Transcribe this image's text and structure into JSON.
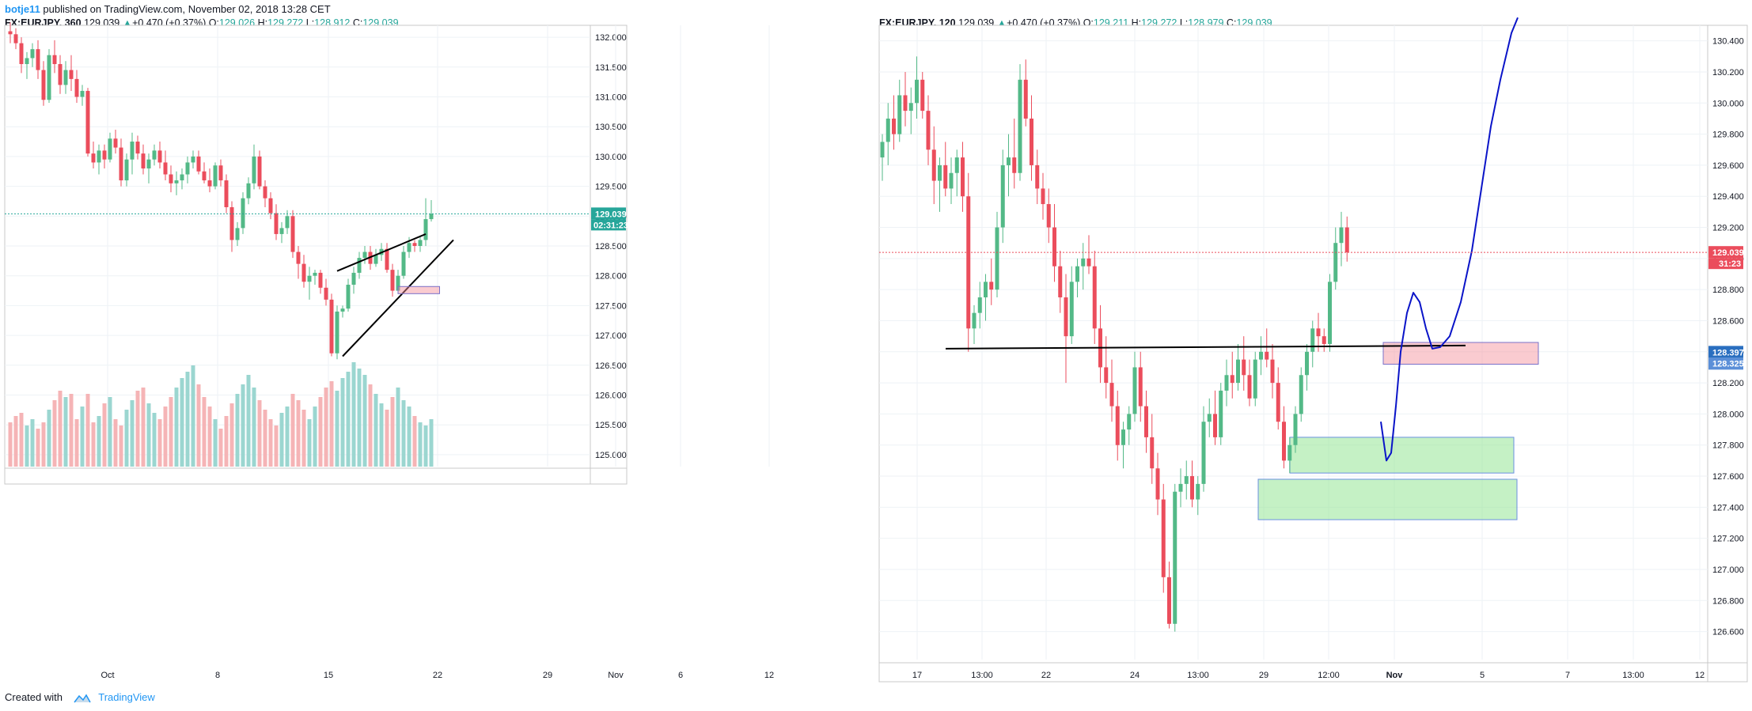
{
  "header": {
    "author": "botje11",
    "text": " published on TradingView.com, November 02, 2018 13:28 CET"
  },
  "footer": {
    "created_with": "Created with",
    "brand": "TradingView"
  },
  "chart_data": [
    {
      "type": "candlestick",
      "symbol": "FX:EURJPY, 360",
      "legend": {
        "price": "129.039",
        "change": "+0.470 (+0.37%)",
        "O": "129.026",
        "H": "129.272",
        "L": "128.912",
        "C": "129.039"
      },
      "y_ticks": [
        "132.000",
        "131.500",
        "131.000",
        "130.500",
        "130.000",
        "129.500",
        "129.000",
        "128.500",
        "128.000",
        "127.500",
        "127.000",
        "126.500",
        "126.000",
        "125.500",
        "125.000"
      ],
      "ylim": [
        124.8,
        132.2
      ],
      "x_ticks": [
        "Oct",
        "8",
        "15",
        "22",
        "29",
        "Nov",
        "6",
        "12"
      ],
      "last_price": "129.039",
      "countdown": "02:31:23",
      "ohlc": [
        [
          132.1,
          132.25,
          131.9,
          132.05
        ],
        [
          132.05,
          132.15,
          131.8,
          131.9
        ],
        [
          131.9,
          132.0,
          131.4,
          131.55
        ],
        [
          131.55,
          131.75,
          131.3,
          131.65
        ],
        [
          131.65,
          131.9,
          131.5,
          131.8
        ],
        [
          131.8,
          131.95,
          131.3,
          131.45
        ],
        [
          131.45,
          131.6,
          130.85,
          130.95
        ],
        [
          130.95,
          131.8,
          130.9,
          131.7
        ],
        [
          131.7,
          131.95,
          131.4,
          131.55
        ],
        [
          131.55,
          131.7,
          131.05,
          131.2
        ],
        [
          131.2,
          131.6,
          131.05,
          131.45
        ],
        [
          131.45,
          131.7,
          131.1,
          131.3
        ],
        [
          131.3,
          131.45,
          130.9,
          131.0
        ],
        [
          131.0,
          131.2,
          130.85,
          131.1
        ],
        [
          131.1,
          131.15,
          130.0,
          130.05
        ],
        [
          130.05,
          130.25,
          129.8,
          129.9
        ],
        [
          129.9,
          130.2,
          129.7,
          130.1
        ],
        [
          130.1,
          130.2,
          129.8,
          129.95
        ],
        [
          129.95,
          130.4,
          129.9,
          130.3
        ],
        [
          130.3,
          130.45,
          130.05,
          130.15
        ],
        [
          130.15,
          130.3,
          129.5,
          129.6
        ],
        [
          129.6,
          130.05,
          129.5,
          129.95
        ],
        [
          129.95,
          130.4,
          129.7,
          130.25
        ],
        [
          130.25,
          130.35,
          129.95,
          130.05
        ],
        [
          130.05,
          130.2,
          129.7,
          129.8
        ],
        [
          129.8,
          130.05,
          129.55,
          129.95
        ],
        [
          129.95,
          130.2,
          129.85,
          130.1
        ],
        [
          130.1,
          130.25,
          129.8,
          129.9
        ],
        [
          129.9,
          130.1,
          129.6,
          129.7
        ],
        [
          129.7,
          129.85,
          129.4,
          129.55
        ],
        [
          129.55,
          129.75,
          129.35,
          129.6
        ],
        [
          129.6,
          129.8,
          129.45,
          129.7
        ],
        [
          129.7,
          130.0,
          129.55,
          129.9
        ],
        [
          129.9,
          130.1,
          129.8,
          130.0
        ],
        [
          130.0,
          130.1,
          129.7,
          129.75
        ],
        [
          129.75,
          129.9,
          129.55,
          129.6
        ],
        [
          129.6,
          129.8,
          129.4,
          129.5
        ],
        [
          129.5,
          129.9,
          129.45,
          129.85
        ],
        [
          129.85,
          129.95,
          129.5,
          129.6
        ],
        [
          129.6,
          129.7,
          129.05,
          129.15
        ],
        [
          129.15,
          129.25,
          128.4,
          128.6
        ],
        [
          128.6,
          128.9,
          128.5,
          128.8
        ],
        [
          128.8,
          129.4,
          128.7,
          129.3
        ],
        [
          129.3,
          129.65,
          129.2,
          129.55
        ],
        [
          129.55,
          130.2,
          129.45,
          130.0
        ],
        [
          130.0,
          130.1,
          129.45,
          129.5
        ],
        [
          129.5,
          129.6,
          129.15,
          129.3
        ],
        [
          129.3,
          129.4,
          128.95,
          129.05
        ],
        [
          129.05,
          129.2,
          128.6,
          128.7
        ],
        [
          128.7,
          128.9,
          128.55,
          128.8
        ],
        [
          128.8,
          129.1,
          128.7,
          129.0
        ],
        [
          129.0,
          129.1,
          128.3,
          128.4
        ],
        [
          128.4,
          128.5,
          127.95,
          128.2
        ],
        [
          128.2,
          128.35,
          127.8,
          127.9
        ],
        [
          127.9,
          128.15,
          127.6,
          128.0
        ],
        [
          128.0,
          128.1,
          127.85,
          128.05
        ],
        [
          128.05,
          128.1,
          127.7,
          127.8
        ],
        [
          127.8,
          127.95,
          127.5,
          127.6
        ],
        [
          127.6,
          127.7,
          126.65,
          126.7
        ],
        [
          126.7,
          127.5,
          126.6,
          127.4
        ],
        [
          127.4,
          127.5,
          127.3,
          127.45
        ],
        [
          127.45,
          127.95,
          127.4,
          127.85
        ],
        [
          127.85,
          128.15,
          127.7,
          128.05
        ],
        [
          128.05,
          128.4,
          127.95,
          128.3
        ],
        [
          128.3,
          128.5,
          128.2,
          128.4
        ],
        [
          128.4,
          128.5,
          128.1,
          128.2
        ],
        [
          128.2,
          128.45,
          128.15,
          128.35
        ],
        [
          128.35,
          128.55,
          128.25,
          128.45
        ],
        [
          128.45,
          128.55,
          128.05,
          128.1
        ],
        [
          128.1,
          128.2,
          127.65,
          127.75
        ],
        [
          127.75,
          128.1,
          127.7,
          128.0
        ],
        [
          128.0,
          128.5,
          127.95,
          128.4
        ],
        [
          128.4,
          128.65,
          128.3,
          128.55
        ],
        [
          128.55,
          128.6,
          128.4,
          128.5
        ],
        [
          128.5,
          128.65,
          128.4,
          128.6
        ],
        [
          128.6,
          129.3,
          128.5,
          128.95
        ],
        [
          128.95,
          129.27,
          128.91,
          129.04
        ]
      ],
      "volume": [
        0.28,
        0.32,
        0.34,
        0.26,
        0.3,
        0.24,
        0.28,
        0.36,
        0.42,
        0.48,
        0.44,
        0.46,
        0.3,
        0.38,
        0.46,
        0.28,
        0.32,
        0.4,
        0.44,
        0.3,
        0.26,
        0.36,
        0.42,
        0.48,
        0.5,
        0.4,
        0.34,
        0.3,
        0.38,
        0.44,
        0.5,
        0.56,
        0.6,
        0.64,
        0.52,
        0.44,
        0.38,
        0.3,
        0.24,
        0.32,
        0.4,
        0.46,
        0.52,
        0.58,
        0.5,
        0.42,
        0.36,
        0.3,
        0.26,
        0.34,
        0.38,
        0.46,
        0.42,
        0.36,
        0.3,
        0.38,
        0.44,
        0.5,
        0.54,
        0.48,
        0.56,
        0.6,
        0.66,
        0.62,
        0.58,
        0.52,
        0.46,
        0.4,
        0.36,
        0.44,
        0.5,
        0.42,
        0.38,
        0.32,
        0.28,
        0.26,
        0.3
      ],
      "annotations": {
        "wedge_top": [
          [
            59,
            128.08
          ],
          [
            75,
            128.7
          ]
        ],
        "wedge_bottom": [
          [
            60,
            126.65
          ],
          [
            80,
            128.6
          ]
        ],
        "supply_zone": [
          70,
          127.7,
          77.5,
          127.82
        ]
      }
    },
    {
      "type": "candlestick",
      "symbol": "FX:EURJPY, 120",
      "legend": {
        "price": "129.039",
        "change": "+0.470 (+0.37%)",
        "O": "129.211",
        "H": "129.272",
        "L": "128.979",
        "C": "129.039"
      },
      "y_ticks": [
        "130.400",
        "130.200",
        "130.000",
        "129.800",
        "129.600",
        "129.400",
        "129.200",
        "129.000",
        "128.800",
        "128.600",
        "128.400",
        "128.200",
        "128.000",
        "127.800",
        "127.600",
        "127.400",
        "127.200",
        "127.000",
        "126.800",
        "126.600"
      ],
      "ylim": [
        126.42,
        130.5
      ],
      "x_ticks": [
        "17",
        "13:00",
        "22",
        "24",
        "13:00",
        "29",
        "12:00",
        "Nov",
        "5",
        "7",
        "13:00",
        "12"
      ],
      "last_price": "129.039",
      "countdown": "31:23",
      "level_labels": [
        "128.397",
        "128.325"
      ],
      "ohlc": [
        [
          129.65,
          129.8,
          129.5,
          129.75
        ],
        [
          129.75,
          130.0,
          129.6,
          129.9
        ],
        [
          129.9,
          130.05,
          129.7,
          129.8
        ],
        [
          129.8,
          130.15,
          129.75,
          130.05
        ],
        [
          130.05,
          130.2,
          129.85,
          129.95
        ],
        [
          129.95,
          130.1,
          129.8,
          130.0
        ],
        [
          130.0,
          130.3,
          129.9,
          130.15
        ],
        [
          130.15,
          130.2,
          129.9,
          129.95
        ],
        [
          129.95,
          130.05,
          129.6,
          129.7
        ],
        [
          129.7,
          129.85,
          129.35,
          129.5
        ],
        [
          129.5,
          129.65,
          129.3,
          129.6
        ],
        [
          129.6,
          129.75,
          129.4,
          129.45
        ],
        [
          129.45,
          129.65,
          129.35,
          129.55
        ],
        [
          129.55,
          129.7,
          129.4,
          129.65
        ],
        [
          129.65,
          129.75,
          129.3,
          129.4
        ],
        [
          129.4,
          129.55,
          128.4,
          128.55
        ],
        [
          128.55,
          128.7,
          128.45,
          128.65
        ],
        [
          128.65,
          128.85,
          128.55,
          128.75
        ],
        [
          128.75,
          128.9,
          128.6,
          128.85
        ],
        [
          128.85,
          129.0,
          128.7,
          128.8
        ],
        [
          128.8,
          129.3,
          128.75,
          129.2
        ],
        [
          129.2,
          129.7,
          129.1,
          129.6
        ],
        [
          129.6,
          129.8,
          129.4,
          129.65
        ],
        [
          129.65,
          129.9,
          129.45,
          129.55
        ],
        [
          129.55,
          130.25,
          129.5,
          130.15
        ],
        [
          130.15,
          130.28,
          129.85,
          129.9
        ],
        [
          129.9,
          130.05,
          129.5,
          129.6
        ],
        [
          129.6,
          129.7,
          129.35,
          129.45
        ],
        [
          129.45,
          129.55,
          129.25,
          129.35
        ],
        [
          129.35,
          129.45,
          129.1,
          129.2
        ],
        [
          129.2,
          129.35,
          128.85,
          128.95
        ],
        [
          128.95,
          129.05,
          128.65,
          128.75
        ],
        [
          128.75,
          128.9,
          128.2,
          128.5
        ],
        [
          128.5,
          128.95,
          128.45,
          128.85
        ],
        [
          128.85,
          129.0,
          128.75,
          128.95
        ],
        [
          128.95,
          129.1,
          128.8,
          129.0
        ],
        [
          129.0,
          129.15,
          128.9,
          128.95
        ],
        [
          128.95,
          129.05,
          128.45,
          128.55
        ],
        [
          128.55,
          128.7,
          128.2,
          128.3
        ],
        [
          128.3,
          128.5,
          128.1,
          128.2
        ],
        [
          128.2,
          128.35,
          127.95,
          128.05
        ],
        [
          128.05,
          128.15,
          127.7,
          127.8
        ],
        [
          127.8,
          127.95,
          127.65,
          127.9
        ],
        [
          127.9,
          128.05,
          127.8,
          128.0
        ],
        [
          128.0,
          128.4,
          127.95,
          128.3
        ],
        [
          128.3,
          128.4,
          127.95,
          128.05
        ],
        [
          128.05,
          128.15,
          127.75,
          127.85
        ],
        [
          127.85,
          128.0,
          127.55,
          127.65
        ],
        [
          127.65,
          127.75,
          127.35,
          127.45
        ],
        [
          127.45,
          127.55,
          126.85,
          126.95
        ],
        [
          126.95,
          127.05,
          126.62,
          126.65
        ],
        [
          126.65,
          127.55,
          126.6,
          127.5
        ],
        [
          127.5,
          127.65,
          127.4,
          127.55
        ],
        [
          127.55,
          127.7,
          127.45,
          127.6
        ],
        [
          127.6,
          127.7,
          127.4,
          127.45
        ],
        [
          127.45,
          127.6,
          127.35,
          127.55
        ],
        [
          127.55,
          128.05,
          127.5,
          127.95
        ],
        [
          127.95,
          128.1,
          127.85,
          128.0
        ],
        [
          128.0,
          128.15,
          127.8,
          127.85
        ],
        [
          127.85,
          128.2,
          127.8,
          128.15
        ],
        [
          128.15,
          128.35,
          128.05,
          128.25
        ],
        [
          128.25,
          128.4,
          128.1,
          128.2
        ],
        [
          128.2,
          128.45,
          128.15,
          128.35
        ],
        [
          128.35,
          128.5,
          128.15,
          128.25
        ],
        [
          128.25,
          128.35,
          128.05,
          128.1
        ],
        [
          128.1,
          128.4,
          128.05,
          128.35
        ],
        [
          128.35,
          128.5,
          128.25,
          128.4
        ],
        [
          128.4,
          128.55,
          128.3,
          128.35
        ],
        [
          128.35,
          128.45,
          128.1,
          128.2
        ],
        [
          128.2,
          128.3,
          127.9,
          127.95
        ],
        [
          127.95,
          128.05,
          127.65,
          127.7
        ],
        [
          127.7,
          127.85,
          127.62,
          127.8
        ],
        [
          127.8,
          128.05,
          127.75,
          128.0
        ],
        [
          128.0,
          128.3,
          127.95,
          128.25
        ],
        [
          128.25,
          128.45,
          128.15,
          128.4
        ],
        [
          128.4,
          128.6,
          128.3,
          128.55
        ],
        [
          128.55,
          128.65,
          128.4,
          128.5
        ],
        [
          128.5,
          128.55,
          128.4,
          128.45
        ],
        [
          128.45,
          128.9,
          128.4,
          128.85
        ],
        [
          128.85,
          129.2,
          128.8,
          129.1
        ],
        [
          129.1,
          129.3,
          128.95,
          129.2
        ],
        [
          129.2,
          129.27,
          128.98,
          129.04
        ]
      ],
      "annotations": {
        "support_line": [
          [
            126.9,
            128.42
          ],
          [
            128.42,
            0
          ]
        ],
        "supply_zone": [
          128.32,
          128.46
        ],
        "demand_zone_1": [
          127.62,
          127.85
        ],
        "demand_zone_2": [
          127.32,
          127.58
        ]
      }
    }
  ]
}
